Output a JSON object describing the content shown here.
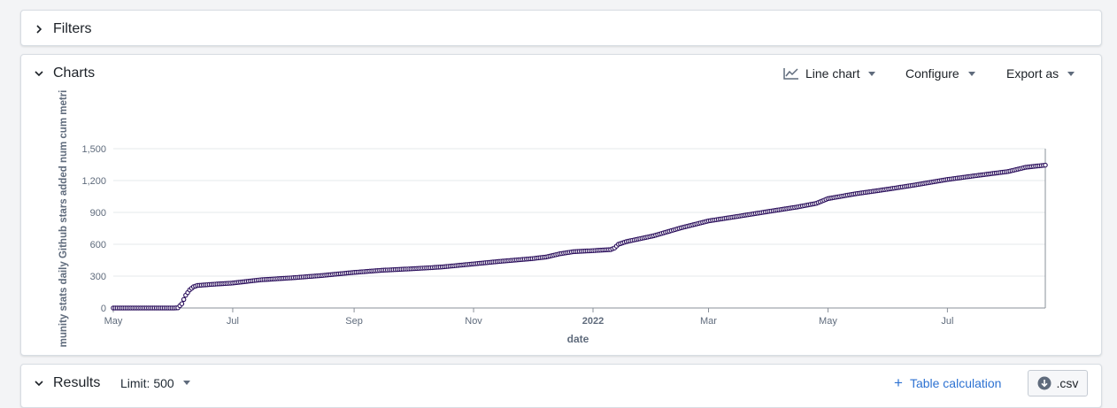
{
  "filters": {
    "title": "Filters"
  },
  "charts": {
    "title": "Charts",
    "toolbar": {
      "chart_type_label": "Line chart",
      "configure_label": "Configure",
      "export_label": "Export as"
    }
  },
  "results": {
    "title": "Results",
    "limit_label": "Limit: 500",
    "table_calc_label": "Table calculation",
    "csv_label": ".csv"
  },
  "colors": {
    "series": "#2b0f5c",
    "accent": "#2d72d2",
    "grid": "#e6e8eb"
  },
  "chart_data": {
    "type": "line",
    "xlabel": "date",
    "ylabel": "munity stats daily Github stars added num cum metri",
    "ylim": [
      0,
      1500
    ],
    "yticks": [
      0,
      300,
      600,
      900,
      1200,
      1500
    ],
    "ytick_labels": [
      "0",
      "300",
      "600",
      "900",
      "1,200",
      "1,500"
    ],
    "xlim": [
      "2021-05-01",
      "2022-08-20"
    ],
    "xticks": [
      {
        "date": "2021-05-01",
        "label": "May",
        "bold": false
      },
      {
        "date": "2021-07-01",
        "label": "Jul",
        "bold": false
      },
      {
        "date": "2021-09-01",
        "label": "Sep",
        "bold": false
      },
      {
        "date": "2021-11-01",
        "label": "Nov",
        "bold": false
      },
      {
        "date": "2022-01-01",
        "label": "2022",
        "bold": true
      },
      {
        "date": "2022-03-01",
        "label": "Mar",
        "bold": false
      },
      {
        "date": "2022-05-01",
        "label": "May",
        "bold": false
      },
      {
        "date": "2022-07-01",
        "label": "Jul",
        "bold": false
      }
    ],
    "grid": true,
    "series": [
      {
        "points": [
          [
            "2021-05-01",
            0
          ],
          [
            "2021-06-01",
            0
          ],
          [
            "2021-06-03",
            2
          ],
          [
            "2021-06-05",
            40
          ],
          [
            "2021-06-07",
            120
          ],
          [
            "2021-06-09",
            170
          ],
          [
            "2021-06-11",
            200
          ],
          [
            "2021-06-13",
            212
          ],
          [
            "2021-06-20",
            222
          ],
          [
            "2021-07-01",
            235
          ],
          [
            "2021-07-15",
            265
          ],
          [
            "2021-08-01",
            285
          ],
          [
            "2021-08-15",
            305
          ],
          [
            "2021-09-01",
            335
          ],
          [
            "2021-09-15",
            355
          ],
          [
            "2021-10-01",
            370
          ],
          [
            "2021-10-15",
            385
          ],
          [
            "2021-11-01",
            415
          ],
          [
            "2021-11-15",
            440
          ],
          [
            "2021-12-01",
            465
          ],
          [
            "2021-12-08",
            480
          ],
          [
            "2021-12-15",
            510
          ],
          [
            "2021-12-22",
            530
          ],
          [
            "2022-01-01",
            540
          ],
          [
            "2022-01-10",
            550
          ],
          [
            "2022-01-12",
            565
          ],
          [
            "2022-01-14",
            600
          ],
          [
            "2022-01-18",
            625
          ],
          [
            "2022-02-01",
            680
          ],
          [
            "2022-02-15",
            755
          ],
          [
            "2022-03-01",
            820
          ],
          [
            "2022-03-15",
            860
          ],
          [
            "2022-04-01",
            910
          ],
          [
            "2022-04-15",
            950
          ],
          [
            "2022-04-25",
            985
          ],
          [
            "2022-05-01",
            1030
          ],
          [
            "2022-05-15",
            1075
          ],
          [
            "2022-06-01",
            1120
          ],
          [
            "2022-06-15",
            1160
          ],
          [
            "2022-07-01",
            1210
          ],
          [
            "2022-07-15",
            1245
          ],
          [
            "2022-08-01",
            1285
          ],
          [
            "2022-08-10",
            1325
          ],
          [
            "2022-08-20",
            1345
          ]
        ]
      }
    ]
  }
}
